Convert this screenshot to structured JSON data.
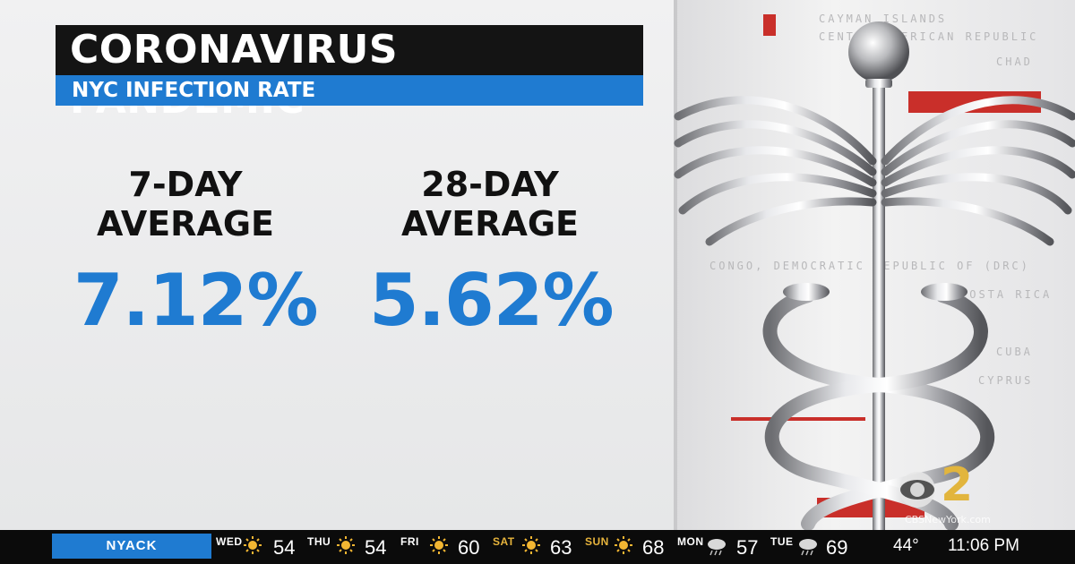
{
  "header": {
    "title": "CORONAVIRUS PANDEMIC",
    "subtitle": "NYC INFECTION RATE"
  },
  "stats": [
    {
      "label_line1": "7-DAY",
      "label_line2": "AVERAGE",
      "value": "7.12%"
    },
    {
      "label_line1": "28-DAY",
      "label_line2": "AVERAGE",
      "value": "5.62%"
    }
  ],
  "background_text": [
    "CAYMAN ISLANDS",
    "CENTRAL AFRICAN REPUBLIC",
    "CHAD",
    "CONGO, DEMOCRATIC REPUBLIC OF (DRC)",
    "COSTA RICA",
    "CUBA",
    "CYPRUS"
  ],
  "logo": {
    "number": "2",
    "url": "CBSNewYork.com"
  },
  "ticker": {
    "location": "NYACK",
    "days": [
      {
        "day": "WED",
        "icon": "sun-icon",
        "temp": "54"
      },
      {
        "day": "THU",
        "icon": "sun-icon",
        "temp": "54"
      },
      {
        "day": "FRI",
        "icon": "sun-icon",
        "temp": "60"
      },
      {
        "day": "SAT",
        "icon": "sun-icon",
        "temp": "63"
      },
      {
        "day": "SUN",
        "icon": "sun-icon",
        "temp": "68"
      },
      {
        "day": "MON",
        "icon": "rain-cloud-icon",
        "temp": "57"
      },
      {
        "day": "TUE",
        "icon": "rain-cloud-icon",
        "temp": "69"
      }
    ],
    "current_temp": "44°",
    "time": "11:06 PM"
  },
  "colors": {
    "accent_blue": "#1f7bd1",
    "title_black": "#141414",
    "ticker_black": "#0b0b0b",
    "weekend_gold": "#e7b43c"
  }
}
